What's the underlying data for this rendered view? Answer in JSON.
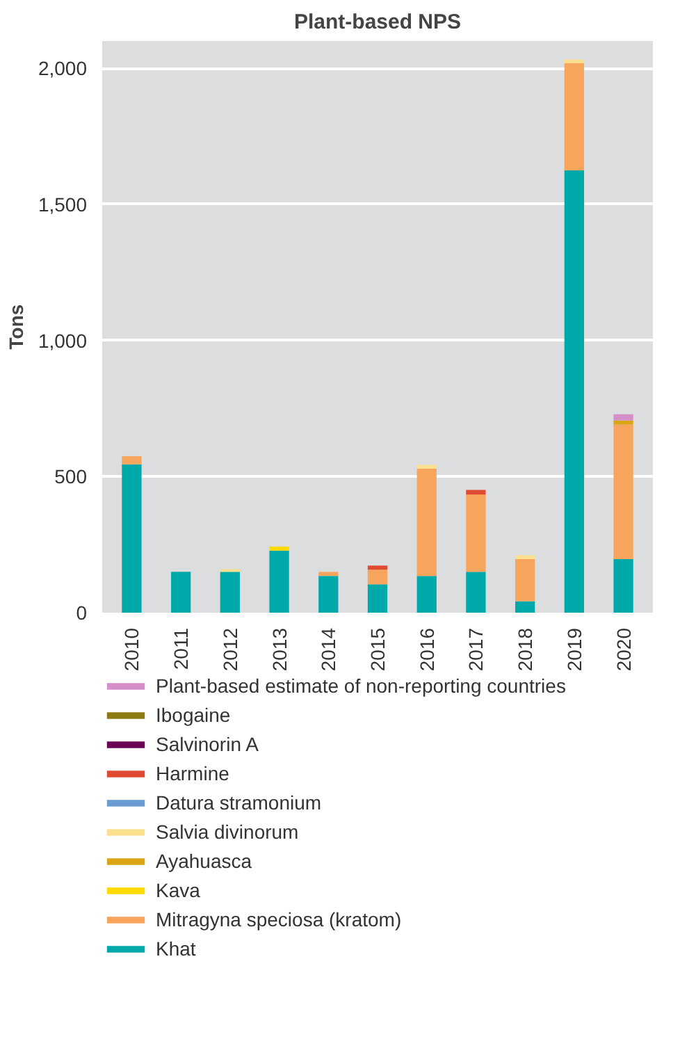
{
  "chart_data": {
    "type": "bar",
    "title": "Plant-based NPS",
    "ylabel": "Tons",
    "stacked": true,
    "legend": "bottom",
    "grid": "y",
    "categories": [
      "2010",
      "2011",
      "2012",
      "2013",
      "2014",
      "2015",
      "2016",
      "2017",
      "2018",
      "2019",
      "2020"
    ],
    "ylim": [
      0,
      2100
    ],
    "yticks": [
      0,
      500,
      {
        "value": 1000,
        "label": "1,000"
      },
      {
        "value": 1500,
        "label": "1,500"
      },
      {
        "value": 2000,
        "label": "2,000"
      }
    ],
    "series": [
      {
        "name": "Khat",
        "color": "#00a9a9",
        "values": [
          545,
          150,
          150,
          228,
          135,
          104,
          135,
          150,
          42,
          1625,
          197
        ]
      },
      {
        "name": "Mitragyna speciosa (kratom)",
        "color": "#f7a55c",
        "values": [
          30,
          0,
          0,
          0,
          15,
          54,
          394,
          284,
          155,
          394,
          494
        ]
      },
      {
        "name": "Kava",
        "color": "#ffd900",
        "values": [
          0,
          0,
          0,
          15,
          0,
          0,
          0,
          0,
          0,
          0,
          0
        ]
      },
      {
        "name": "Ayahuasca",
        "color": "#d9a514",
        "values": [
          0,
          0,
          0,
          0,
          0,
          0,
          0,
          0,
          0,
          0,
          15
        ]
      },
      {
        "name": "Salvia divinorum",
        "color": "#fde08f",
        "values": [
          0,
          0,
          10,
          0,
          0,
          0,
          14,
          0,
          14,
          13,
          0
        ]
      },
      {
        "name": "Datura stramonium",
        "color": "#6a9bd1",
        "values": [
          0,
          0,
          0,
          0,
          0,
          0,
          0,
          0,
          0,
          0,
          0
        ]
      },
      {
        "name": "Harmine",
        "color": "#e04a33",
        "values": [
          0,
          0,
          0,
          0,
          0,
          15,
          0,
          17,
          0,
          0,
          0
        ]
      },
      {
        "name": "Salvinorin A",
        "color": "#6b0055",
        "values": [
          0,
          0,
          0,
          0,
          0,
          0,
          0,
          0,
          0,
          0,
          0
        ]
      },
      {
        "name": "Ibogaine",
        "color": "#8a7a10",
        "values": [
          0,
          0,
          0,
          0,
          0,
          0,
          0,
          0,
          0,
          0,
          0
        ]
      },
      {
        "name": "Plant-based estimate of non-reporting countries",
        "color": "#d58fc8",
        "values": [
          0,
          0,
          0,
          0,
          0,
          0,
          0,
          0,
          0,
          0,
          23
        ]
      }
    ]
  }
}
